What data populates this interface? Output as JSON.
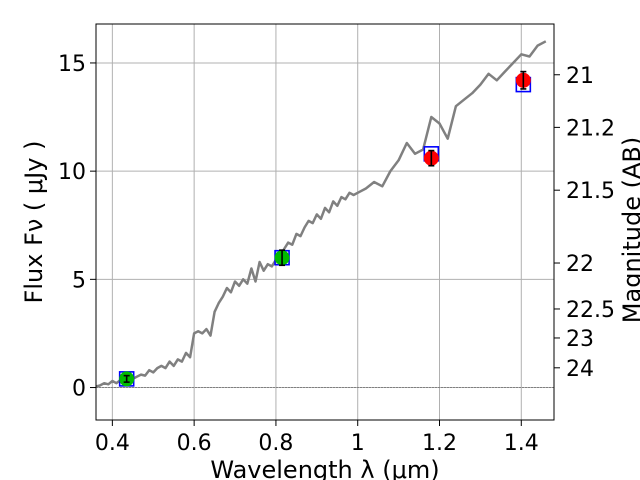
{
  "chart_data": {
    "type": "line",
    "title": "",
    "xlabel": "Wavelength  λ (μm)",
    "ylabel": "Flux  Fν  ( μJy )",
    "y2label": "Magnitude (AB)",
    "xlim": [
      0.36,
      1.48
    ],
    "ylim": [
      -1.5,
      16.8
    ],
    "grid": true,
    "x_ticks": [
      0.4,
      0.6,
      0.8,
      1.0,
      1.2,
      1.4
    ],
    "x_tick_labels": [
      "0.4",
      "0.6",
      "0.8",
      "1",
      "1.2",
      "1.4"
    ],
    "y_ticks": [
      0,
      5,
      10,
      15
    ],
    "y_tick_labels": [
      "0",
      "5",
      "10",
      "15"
    ],
    "mag_ticks": [
      21,
      21.2,
      21.5,
      22,
      22.5,
      23,
      24
    ],
    "mag_tick_labels": [
      "21",
      "21.2",
      "21.5",
      "22",
      "22.5",
      "23",
      "24"
    ],
    "colors": {
      "spectrum": "#808080",
      "model_box": "#0000ff",
      "obs_green": "#00bb00",
      "obs_red": "#ff0000",
      "zero_line": "#808080",
      "grid": "#b0b0b0"
    },
    "series": [
      {
        "kind": "spectrum",
        "x": [
          0.36,
          0.37,
          0.38,
          0.39,
          0.4,
          0.41,
          0.42,
          0.43,
          0.44,
          0.45,
          0.46,
          0.47,
          0.48,
          0.49,
          0.5,
          0.51,
          0.52,
          0.53,
          0.54,
          0.55,
          0.56,
          0.57,
          0.58,
          0.59,
          0.6,
          0.61,
          0.62,
          0.63,
          0.64,
          0.65,
          0.66,
          0.67,
          0.68,
          0.69,
          0.7,
          0.71,
          0.72,
          0.73,
          0.74,
          0.75,
          0.76,
          0.77,
          0.78,
          0.79,
          0.8,
          0.81,
          0.82,
          0.83,
          0.84,
          0.85,
          0.86,
          0.87,
          0.88,
          0.89,
          0.9,
          0.91,
          0.92,
          0.93,
          0.94,
          0.95,
          0.96,
          0.97,
          0.98,
          0.99,
          1.0,
          1.02,
          1.04,
          1.06,
          1.08,
          1.1,
          1.12,
          1.14,
          1.16,
          1.18,
          1.2,
          1.22,
          1.24,
          1.26,
          1.28,
          1.3,
          1.32,
          1.34,
          1.36,
          1.38,
          1.4,
          1.42,
          1.44,
          1.46
        ],
        "y": [
          0.05,
          0.1,
          0.2,
          0.15,
          0.3,
          0.2,
          0.35,
          0.3,
          0.5,
          0.4,
          0.5,
          0.6,
          0.55,
          0.8,
          0.7,
          0.9,
          1.0,
          0.9,
          1.2,
          1.0,
          1.3,
          1.2,
          1.6,
          1.4,
          2.5,
          2.6,
          2.5,
          2.7,
          2.4,
          3.5,
          3.9,
          4.2,
          4.6,
          4.4,
          4.9,
          4.7,
          5.0,
          4.8,
          5.5,
          4.9,
          5.8,
          5.4,
          5.7,
          5.6,
          5.9,
          6.0,
          6.4,
          6.7,
          6.6,
          7.1,
          7.0,
          7.4,
          7.7,
          7.6,
          8.0,
          7.8,
          8.3,
          8.1,
          8.6,
          8.4,
          8.8,
          8.7,
          9.0,
          8.9,
          9.0,
          9.2,
          9.5,
          9.3,
          10.0,
          10.5,
          11.3,
          10.8,
          11.0,
          12.5,
          12.2,
          11.5,
          13.0,
          13.3,
          13.6,
          14.0,
          14.5,
          14.2,
          14.6,
          15.0,
          15.4,
          15.3,
          15.8,
          16.0
        ]
      },
      {
        "kind": "model_boxes",
        "x": [
          0.435,
          0.815,
          1.18,
          1.405
        ],
        "y": [
          0.4,
          6.0,
          10.8,
          14.0
        ]
      },
      {
        "kind": "observed_green",
        "x": [
          0.435,
          0.815
        ],
        "y": [
          0.4,
          6.0
        ],
        "err": [
          0.15,
          0.35
        ]
      },
      {
        "kind": "observed_red",
        "x": [
          1.18,
          1.405
        ],
        "y": [
          10.6,
          14.2
        ],
        "err": [
          0.35,
          0.4
        ]
      }
    ]
  }
}
